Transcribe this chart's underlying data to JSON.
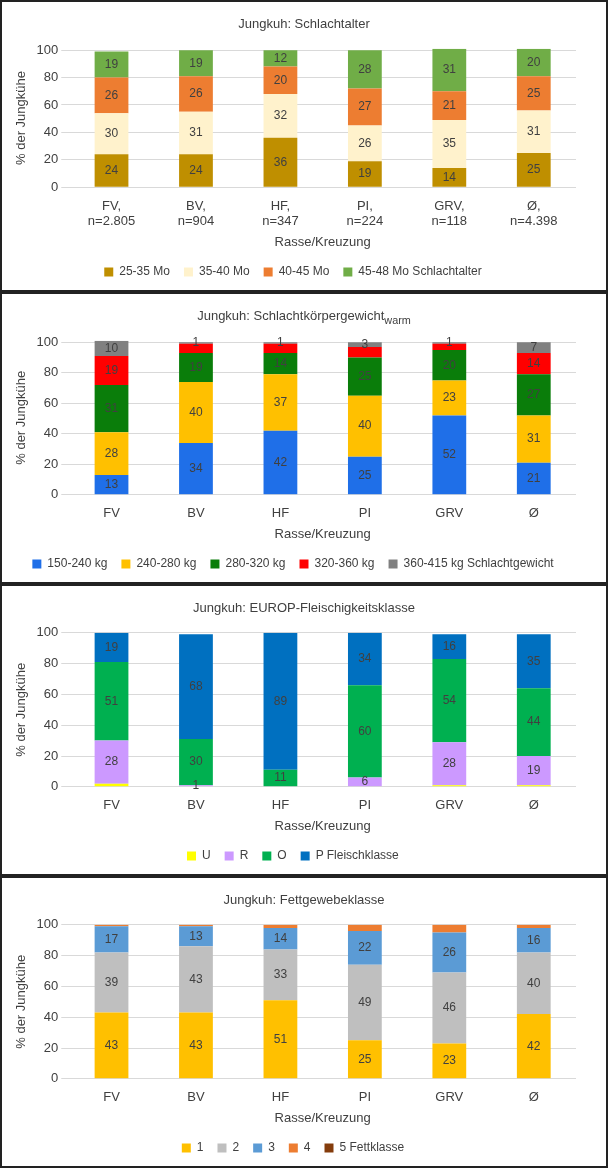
{
  "chart_data": [
    {
      "type": "bar",
      "title": "Jungkuh: Schlachtalter",
      "xlabel": "Rasse/Kreuzung",
      "ylabel": "% der Jungkühe",
      "categories": [
        "FV,\nn=2.805",
        "BV,\nn=904",
        "HF,\nn=347",
        "PI,\nn=224",
        "GRV,\nn=118",
        "Ø,\nn=4.398"
      ],
      "stacked": true,
      "ylim": [
        0,
        101
      ],
      "yticks": [
        0,
        20,
        40,
        60,
        80,
        100
      ],
      "grid": "y",
      "legend": "bottom",
      "data_labels": true,
      "series": [
        {
          "name": "25-35 Mo",
          "color": "#bf8f00",
          "values": [
            24,
            24,
            36,
            19,
            14,
            25
          ]
        },
        {
          "name": "35-40 Mo",
          "color": "#fff2cc",
          "values": [
            30,
            31,
            32,
            26,
            35,
            31
          ]
        },
        {
          "name": "40-45 Mo",
          "color": "#ed7d31",
          "values": [
            26,
            26,
            20,
            27,
            21,
            25
          ]
        },
        {
          "name": "45-48 Mo Schlachtalter",
          "color": "#70ad47",
          "values": [
            19,
            19,
            12,
            28,
            31,
            20
          ]
        }
      ]
    },
    {
      "type": "bar",
      "title": "Jungkuh: Schlachtkörpergewicht$_{warm}$",
      "xlabel": "Rasse/Kreuzung",
      "ylabel": "% der Jungkühe",
      "categories": [
        "FV",
        "BV",
        "HF",
        "PI",
        "GRV",
        "Ø"
      ],
      "stacked": true,
      "ylim": [
        0,
        101
      ],
      "yticks": [
        0,
        20,
        40,
        60,
        80,
        100
      ],
      "grid": "y",
      "legend": "bottom",
      "series": [
        {
          "name": "150-240 kg",
          "color": "#1f6fe8",
          "values": [
            13,
            34,
            42,
            25,
            52,
            21
          ],
          "value_labels": [
            "13",
            "34",
            "42",
            "25",
            "52",
            "21"
          ]
        },
        {
          "name": "240-280 kg",
          "color": "#ffc000",
          "values": [
            28,
            40,
            37,
            40,
            23,
            31
          ],
          "value_labels": [
            "28",
            "40",
            "37",
            "40",
            "23",
            "31"
          ]
        },
        {
          "name": "280-320 kg",
          "color": "#0a7d0a",
          "values": [
            31,
            19,
            14,
            25,
            20,
            27
          ],
          "value_labels": [
            "31",
            "19",
            "14",
            "25",
            "20",
            "27"
          ]
        },
        {
          "name": "320-360 kg",
          "color": "#ff0000",
          "values": [
            19,
            6,
            6,
            7,
            4,
            14
          ],
          "value_labels": [
            "19",
            null,
            null,
            null,
            null,
            "14"
          ]
        },
        {
          "name": "360-415 kg Schlachtgewicht",
          "color": "#808080",
          "values": [
            10,
            1,
            1,
            3,
            1,
            7
          ],
          "value_labels": [
            "10",
            "1",
            "1",
            "3",
            "1",
            "7"
          ]
        }
      ]
    },
    {
      "type": "bar",
      "title": "Jungkuh: EUROP-Fleischigkeitsklasse",
      "xlabel": "Rasse/Kreuzung",
      "ylabel": "% der Jungkühe",
      "categories": [
        "FV",
        "BV",
        "HF",
        "PI",
        "GRV",
        "Ø"
      ],
      "stacked": true,
      "ylim": [
        0,
        100
      ],
      "yticks": [
        0,
        20,
        40,
        60,
        80,
        100
      ],
      "grid": "y",
      "legend": "bottom",
      "series": [
        {
          "name": "U",
          "color": "#ffff00",
          "values": [
            2,
            0,
            0,
            0,
            1,
            1
          ],
          "value_labels": [
            null,
            null,
            null,
            null,
            null,
            null
          ]
        },
        {
          "name": "R",
          "color": "#cc99ff",
          "values": [
            28,
            1,
            0,
            6,
            28,
            19
          ],
          "value_labels": [
            "28",
            "1",
            null,
            "6",
            "28",
            "19"
          ]
        },
        {
          "name": "O",
          "color": "#00b050",
          "values": [
            51,
            30,
            11,
            60,
            54,
            44
          ],
          "value_labels": [
            "51",
            "30",
            "11",
            "60",
            "54",
            "44"
          ]
        },
        {
          "name": "P Fleischklasse",
          "color": "#0070c0",
          "values": [
            19,
            68,
            89,
            34,
            16,
            35
          ],
          "value_labels": [
            "19",
            "68",
            "89",
            "34",
            "16",
            "35"
          ]
        }
      ]
    },
    {
      "type": "bar",
      "title": "Jungkuh: Fettgewebeklasse",
      "xlabel": "Rasse/Kreuzung",
      "ylabel": "% der Jungkühe",
      "categories": [
        "FV",
        "BV",
        "HF",
        "PI",
        "GRV",
        "Ø"
      ],
      "stacked": true,
      "ylim": [
        0,
        100
      ],
      "yticks": [
        0,
        20,
        40,
        60,
        80,
        100
      ],
      "grid": "y",
      "legend": "bottom",
      "series": [
        {
          "name": "1",
          "color": "#ffc000",
          "values": [
            43,
            43,
            51,
            25,
            23,
            42
          ],
          "value_labels": [
            "43",
            "43",
            "51",
            "25",
            "23",
            "42"
          ]
        },
        {
          "name": "2",
          "color": "#bfbfbf",
          "values": [
            39,
            43,
            33,
            49,
            46,
            40
          ],
          "value_labels": [
            "39",
            "43",
            "33",
            "49",
            "46",
            "40"
          ]
        },
        {
          "name": "3",
          "color": "#5b9bd5",
          "values": [
            17,
            13,
            14,
            22,
            26,
            16
          ],
          "value_labels": [
            "17",
            "13",
            "14",
            "22",
            "26",
            "16"
          ]
        },
        {
          "name": "4",
          "color": "#ed7d31",
          "values": [
            1,
            1,
            2,
            4,
            5,
            2
          ],
          "value_labels": [
            null,
            null,
            null,
            null,
            null,
            null
          ]
        },
        {
          "name": "5 Fettklasse",
          "color": "#843c0c",
          "values": [
            0,
            0,
            0,
            0,
            0,
            0
          ],
          "value_labels": [
            null,
            null,
            null,
            null,
            null,
            null
          ]
        }
      ]
    }
  ]
}
